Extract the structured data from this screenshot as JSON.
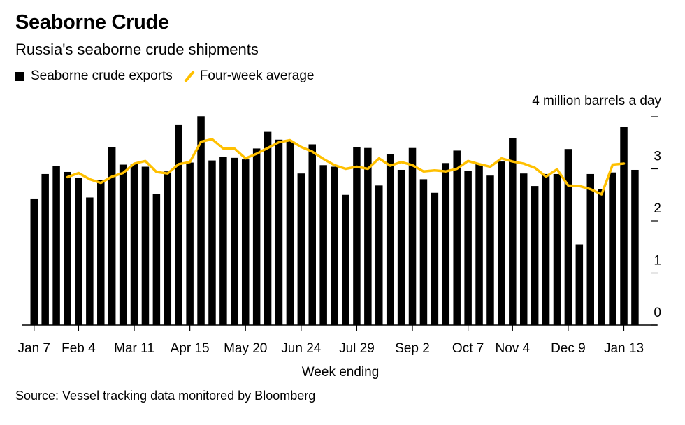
{
  "title": "Seaborne Crude",
  "subtitle": "Russia's seaborne crude shipments",
  "legend": {
    "bars": "Seaborne crude exports",
    "line": "Four-week average"
  },
  "unit_label": "4 million barrels a day",
  "source": "Source: Vessel tracking data monitored by Bloomberg",
  "colors": {
    "bars": "#000000",
    "line": "#ffc000"
  },
  "chart_data": {
    "type": "bar",
    "xlabel": "Week ending",
    "ylabel": "million barrels a day",
    "ylim": [
      0,
      4
    ],
    "yticks": [
      0,
      1,
      2,
      3
    ],
    "x_tick_labels": [
      "Jan 7",
      "Feb 4",
      "Mar 11",
      "Apr 15",
      "May 20",
      "Jun 24",
      "Jul 29",
      "Sep 2",
      "Oct 7",
      "Nov 4",
      "Dec 9",
      "Jan 13"
    ],
    "x_tick_index": [
      0,
      4,
      9,
      14,
      19,
      24,
      29,
      34,
      39,
      43,
      48,
      53
    ],
    "series": [
      {
        "name": "Seaborne crude exports",
        "type": "bar",
        "values": [
          2.43,
          2.9,
          3.05,
          2.94,
          2.82,
          2.45,
          2.79,
          3.41,
          3.08,
          3.1,
          3.04,
          2.51,
          2.95,
          3.84,
          3.12,
          4.01,
          3.16,
          3.23,
          3.21,
          3.18,
          3.39,
          3.71,
          3.56,
          3.53,
          2.91,
          3.47,
          3.07,
          3.04,
          2.5,
          3.42,
          3.4,
          2.68,
          3.28,
          2.98,
          3.4,
          2.8,
          2.54,
          3.11,
          3.35,
          2.96,
          3.1,
          2.87,
          3.14,
          3.59,
          2.91,
          2.67,
          2.9,
          2.9,
          3.38,
          1.55,
          2.9,
          2.61,
          2.93,
          3.8,
          2.98
        ]
      },
      {
        "name": "Four-week average",
        "type": "line",
        "start_index": 3,
        "values": [
          2.84,
          2.92,
          2.8,
          2.73,
          2.85,
          2.92,
          3.1,
          3.15,
          2.94,
          2.91,
          3.09,
          3.13,
          3.52,
          3.57,
          3.39,
          3.39,
          3.2,
          3.29,
          3.4,
          3.51,
          3.55,
          3.42,
          3.33,
          3.19,
          3.07,
          3.0,
          3.04,
          3.0,
          3.2,
          3.06,
          3.13,
          3.07,
          2.95,
          2.97,
          2.95,
          3.0,
          3.15,
          3.09,
          3.04,
          3.2,
          3.14,
          3.1,
          3.02,
          2.85,
          2.99,
          2.68,
          2.67,
          2.61,
          2.51,
          3.08,
          3.1
        ]
      }
    ]
  }
}
